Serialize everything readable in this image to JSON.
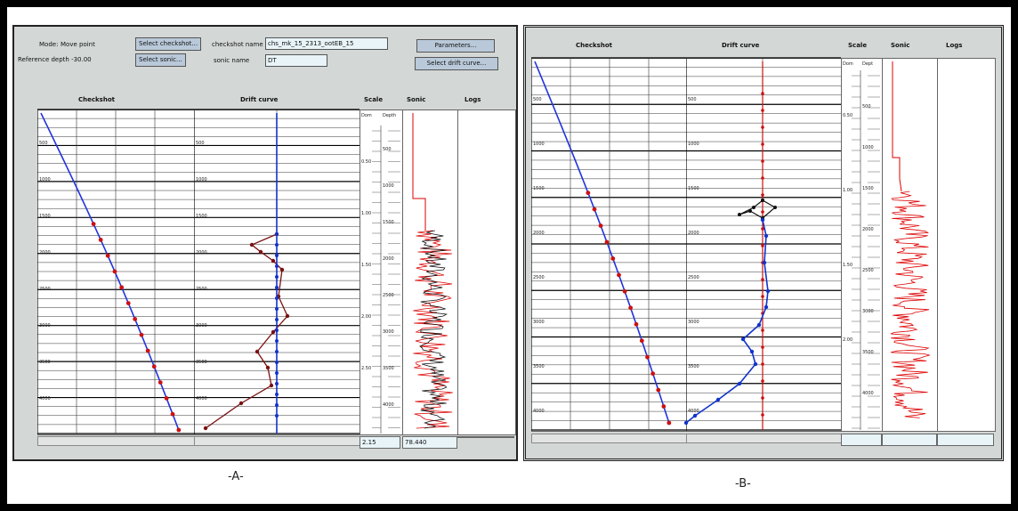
{
  "panelA": {
    "mode_label": "Mode:",
    "mode_value": "Move point",
    "reference_depth": "Reference depth -30.00",
    "select_checkshot_button": "Select checkshot...",
    "select_sonic_button": "Select sonic...",
    "checkshot_name_label": "checkshot name",
    "checkshot_name_value": "chs_mk_15_2313_ootEB_15",
    "sonic_name_label": "sonic name",
    "sonic_name_value": "DT",
    "parameters_button": "Parameters...",
    "select_drift_button": "Select drift curve...",
    "headers": {
      "checkshot": "Checkshot",
      "drift": "Drift curve",
      "scale": "Scale",
      "sonic": "Sonic",
      "logs": "Logs"
    },
    "scale_col_labels": [
      "Dom",
      "Depth"
    ],
    "depth_ticks": [
      "500",
      "1000",
      "1500",
      "2000",
      "2500",
      "3000",
      "3500",
      "4000"
    ],
    "scale_ticks": [
      "0.50",
      "1.00",
      "1.50",
      "2.00",
      "2.50"
    ],
    "status_values": [
      "2.15",
      "78.440"
    ],
    "caption": "-A-"
  },
  "panelB": {
    "headers": {
      "checkshot": "Checkshot",
      "drift": "Drift curve",
      "scale": "Scale",
      "sonic": "Sonic",
      "logs": "Logs"
    },
    "scale_col_labels": [
      "Dom",
      "Dept"
    ],
    "depth_ticks": [
      "500",
      "1000",
      "1500",
      "2000",
      "2500",
      "3000",
      "3500",
      "4000"
    ],
    "scale_ticks": [
      "0.50",
      "1.00",
      "1.50",
      "2.00"
    ],
    "caption": "-B-"
  },
  "colors": {
    "checkshot_line": "#2233dd",
    "points": "#cc1111",
    "drift_A": "#7a1111",
    "drift_B_blue": "#1133cc",
    "sonic_red": "#dd0000",
    "sonic_black": "#111111"
  }
}
